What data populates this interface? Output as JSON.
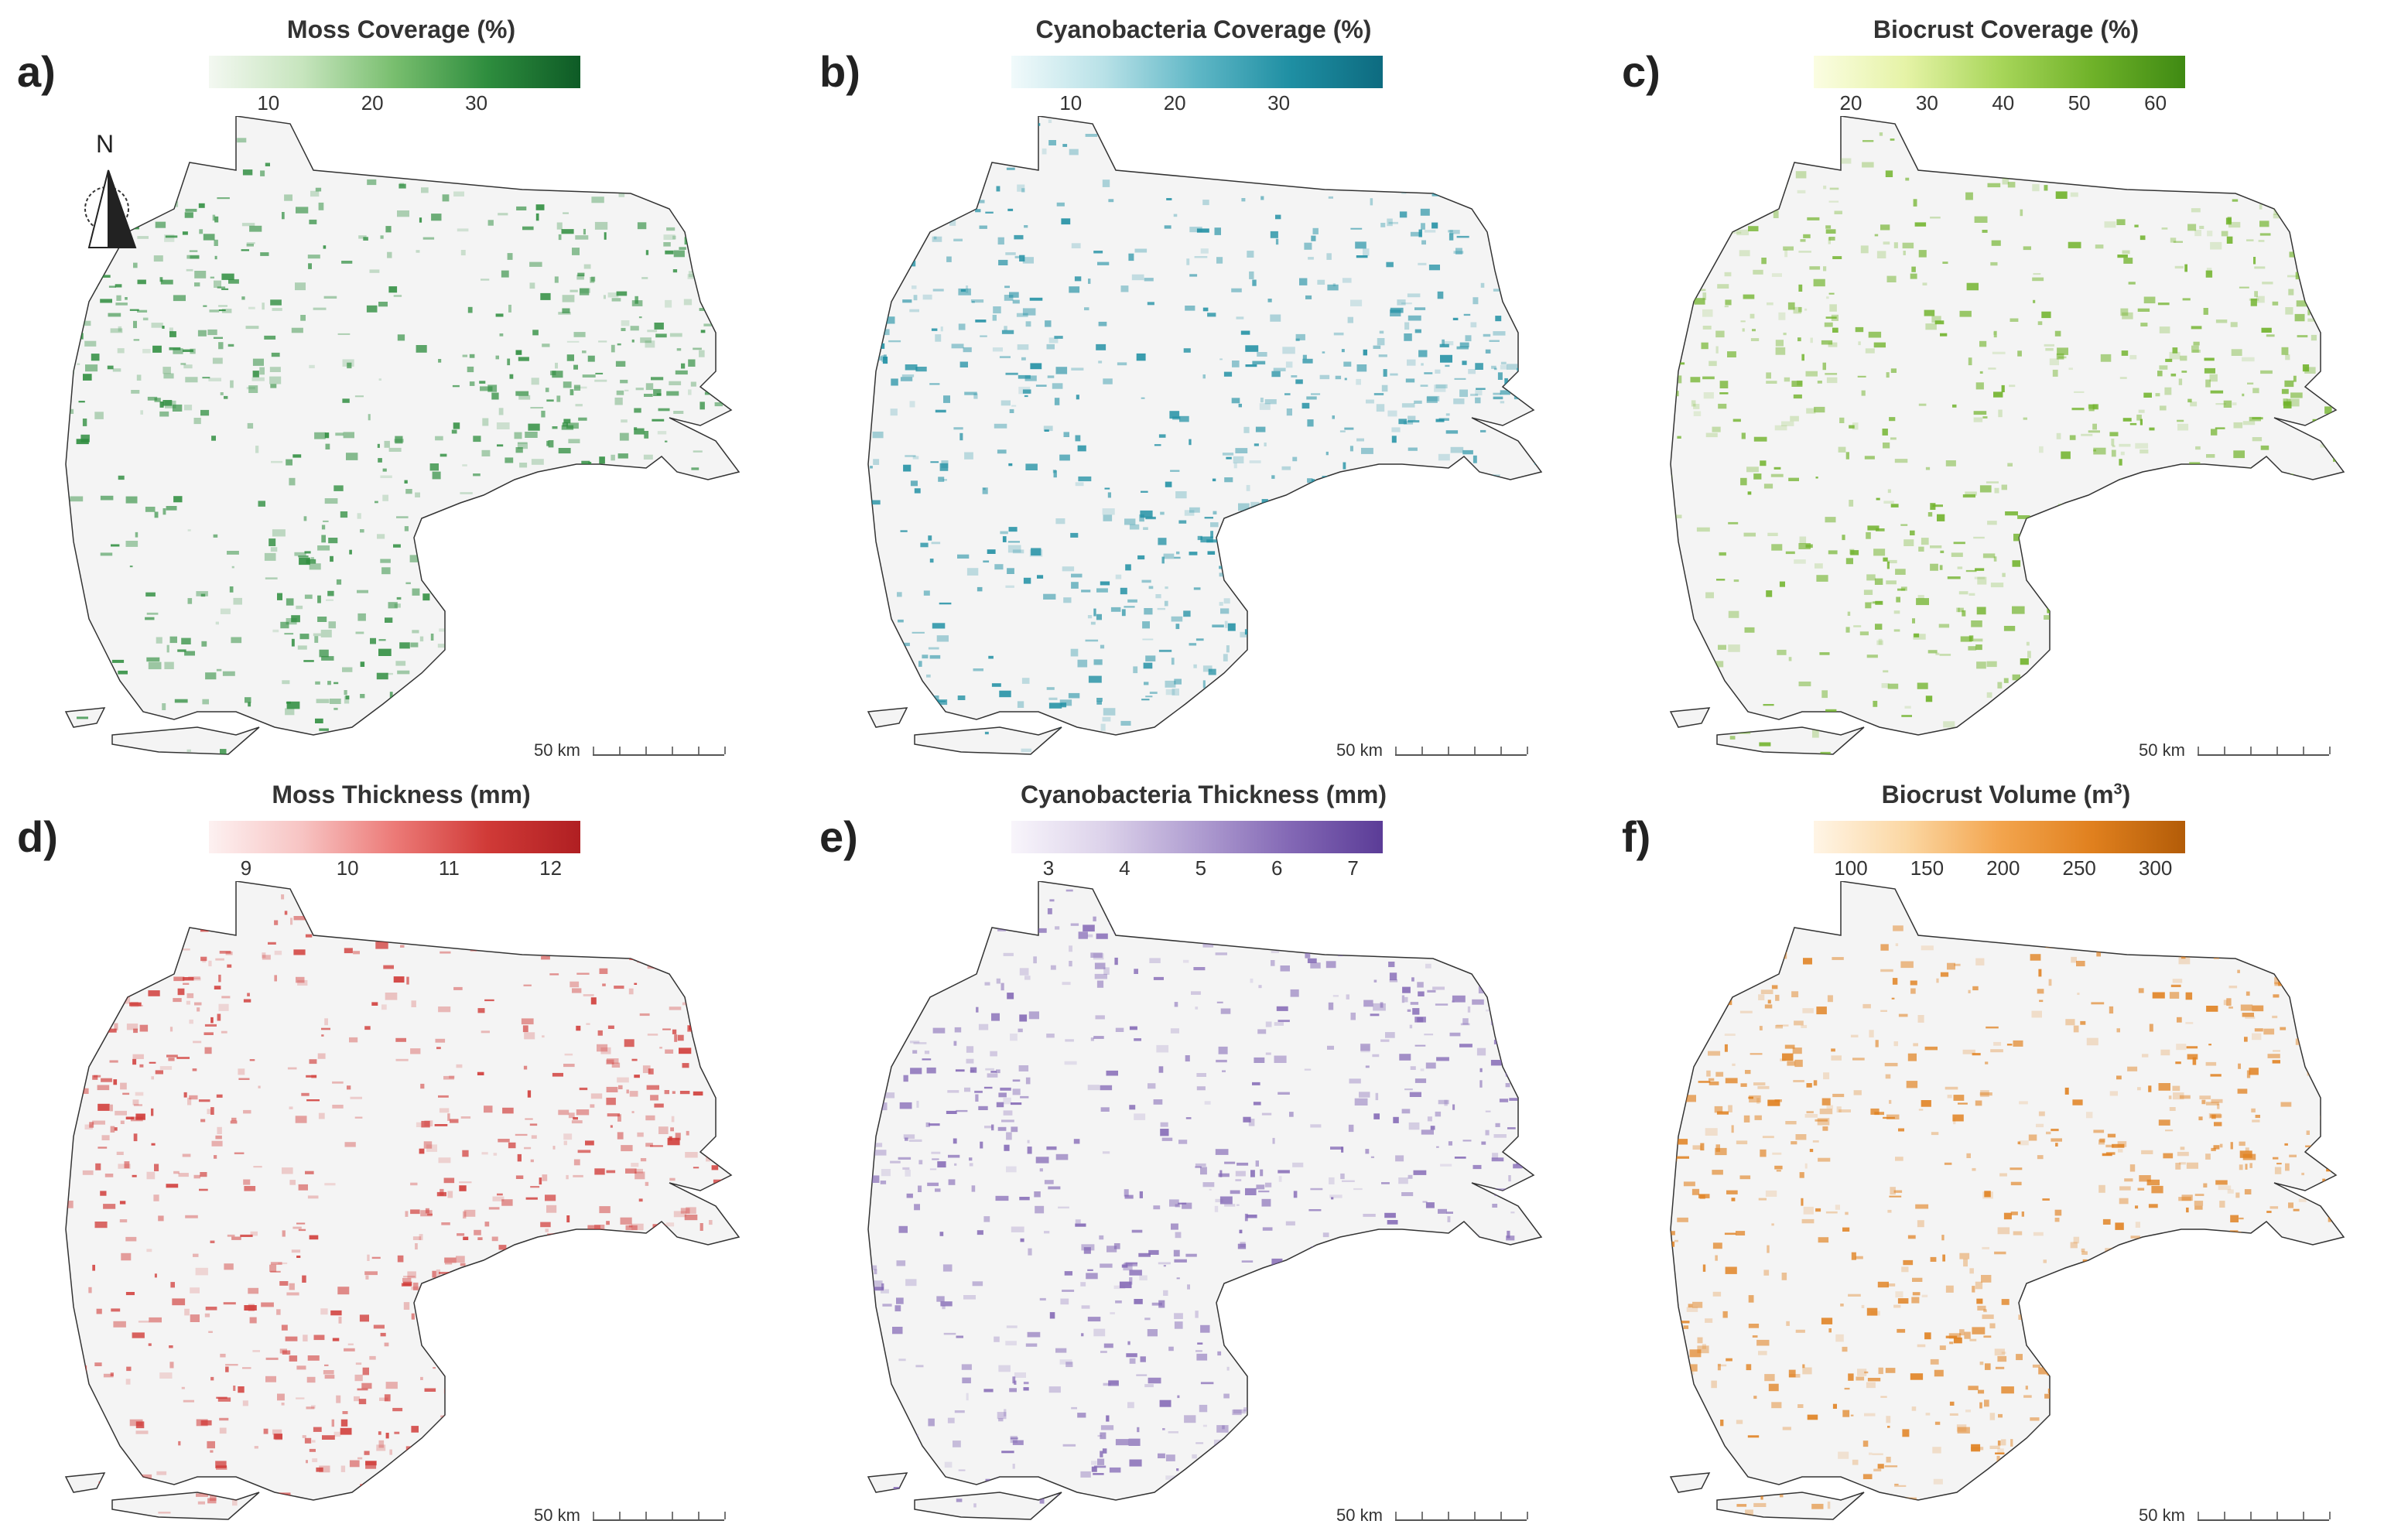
{
  "north_label": "N",
  "scale_label": "50 km",
  "panels": [
    {
      "letter": "a)",
      "title": "Moss Coverage (%)",
      "ticks": [
        "10",
        "20",
        "30"
      ],
      "colors": [
        "#f3f8f1",
        "#c7e5be",
        "#78be6e",
        "#2e8d3e",
        "#0e5b26"
      ],
      "base": [
        46,
        141,
        62
      ]
    },
    {
      "letter": "b)",
      "title": "Cyanobacteria Coverage (%)",
      "ticks": [
        "10",
        "20",
        "30"
      ],
      "colors": [
        "#f1fafb",
        "#b8e1e7",
        "#5fb7c6",
        "#1f8fa3",
        "#0d6b80"
      ],
      "base": [
        31,
        143,
        163
      ]
    },
    {
      "letter": "c)",
      "title": "Biocrust Coverage (%)",
      "ticks": [
        "20",
        "30",
        "40",
        "50",
        "60"
      ],
      "colors": [
        "#fbfde2",
        "#e5f3a6",
        "#a8d65a",
        "#6fb229",
        "#3f8a13"
      ],
      "base": [
        111,
        178,
        41
      ]
    },
    {
      "letter": "d)",
      "title": "Moss Thickness (mm)",
      "ticks": [
        "9",
        "10",
        "11",
        "12"
      ],
      "colors": [
        "#fdf1f1",
        "#f7c4c3",
        "#ec7a77",
        "#d03a37",
        "#b01f22"
      ],
      "base": [
        208,
        58,
        55
      ]
    },
    {
      "letter": "e)",
      "title": "Cyanobacteria Thickness (mm)",
      "ticks": [
        "3",
        "4",
        "5",
        "6",
        "7"
      ],
      "colors": [
        "#f8f5fb",
        "#dcd2ea",
        "#b09ed1",
        "#8368b5",
        "#5b3c97"
      ],
      "base": [
        131,
        104,
        181
      ]
    },
    {
      "letter": "f)",
      "title": "Biocrust Volume (m3)",
      "ticks": [
        "100",
        "150",
        "200",
        "250",
        "300"
      ],
      "colors": [
        "#fff5e6",
        "#fbd7a3",
        "#f3a54e",
        "#e0801e",
        "#b35c08"
      ],
      "base": [
        224,
        128,
        30
      ]
    }
  ]
}
